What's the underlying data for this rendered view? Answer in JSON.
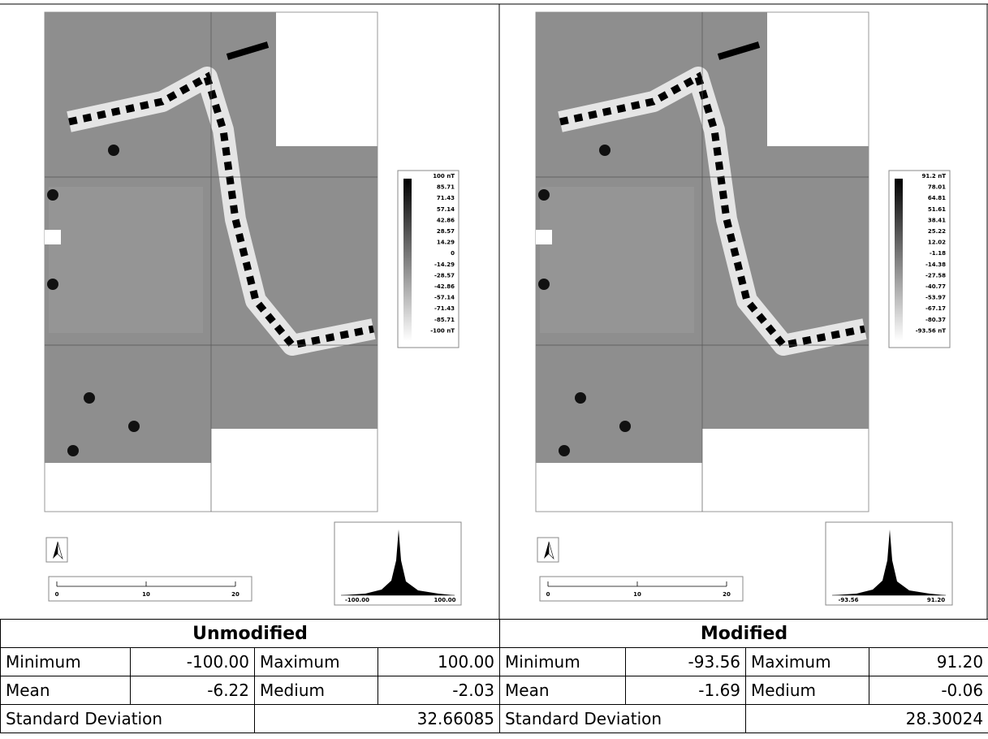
{
  "panels": [
    {
      "legend": [
        "100 nT",
        "85.71",
        "71.43",
        "57.14",
        "42.86",
        "28.57",
        "14.29",
        "0",
        "-14.29",
        "-28.57",
        "-42.86",
        "-57.14",
        "-71.43",
        "-85.71",
        "-100 nT"
      ],
      "scale_labels": [
        "0",
        "10",
        "20"
      ],
      "histogram_labels": [
        "-100.00",
        "100.00"
      ]
    },
    {
      "legend": [
        "91.2 nT",
        "78.01",
        "64.81",
        "51.61",
        "38.41",
        "25.22",
        "12.02",
        "-1.18",
        "-14.38",
        "-27.58",
        "-40.77",
        "-53.97",
        "-67.17",
        "-80.37",
        "-93.56 nT"
      ],
      "scale_labels": [
        "0",
        "10",
        "20"
      ],
      "histogram_labels": [
        "-93.56",
        "91.20"
      ]
    }
  ],
  "table": {
    "headers": [
      "Unmodified",
      "Modified"
    ],
    "rows": [
      [
        "Minimum",
        "-100.00",
        "Maximum",
        "100.00",
        "Minimum",
        "-93.56",
        "Maximum",
        "91.20"
      ],
      [
        "Mean",
        "-6.22",
        "Medium",
        "-2.03",
        "Mean",
        "-1.69",
        "Medium",
        "-0.06"
      ],
      [
        "Standard Deviation",
        "32.66085",
        "Standard Deviation",
        "28.30024"
      ]
    ]
  }
}
